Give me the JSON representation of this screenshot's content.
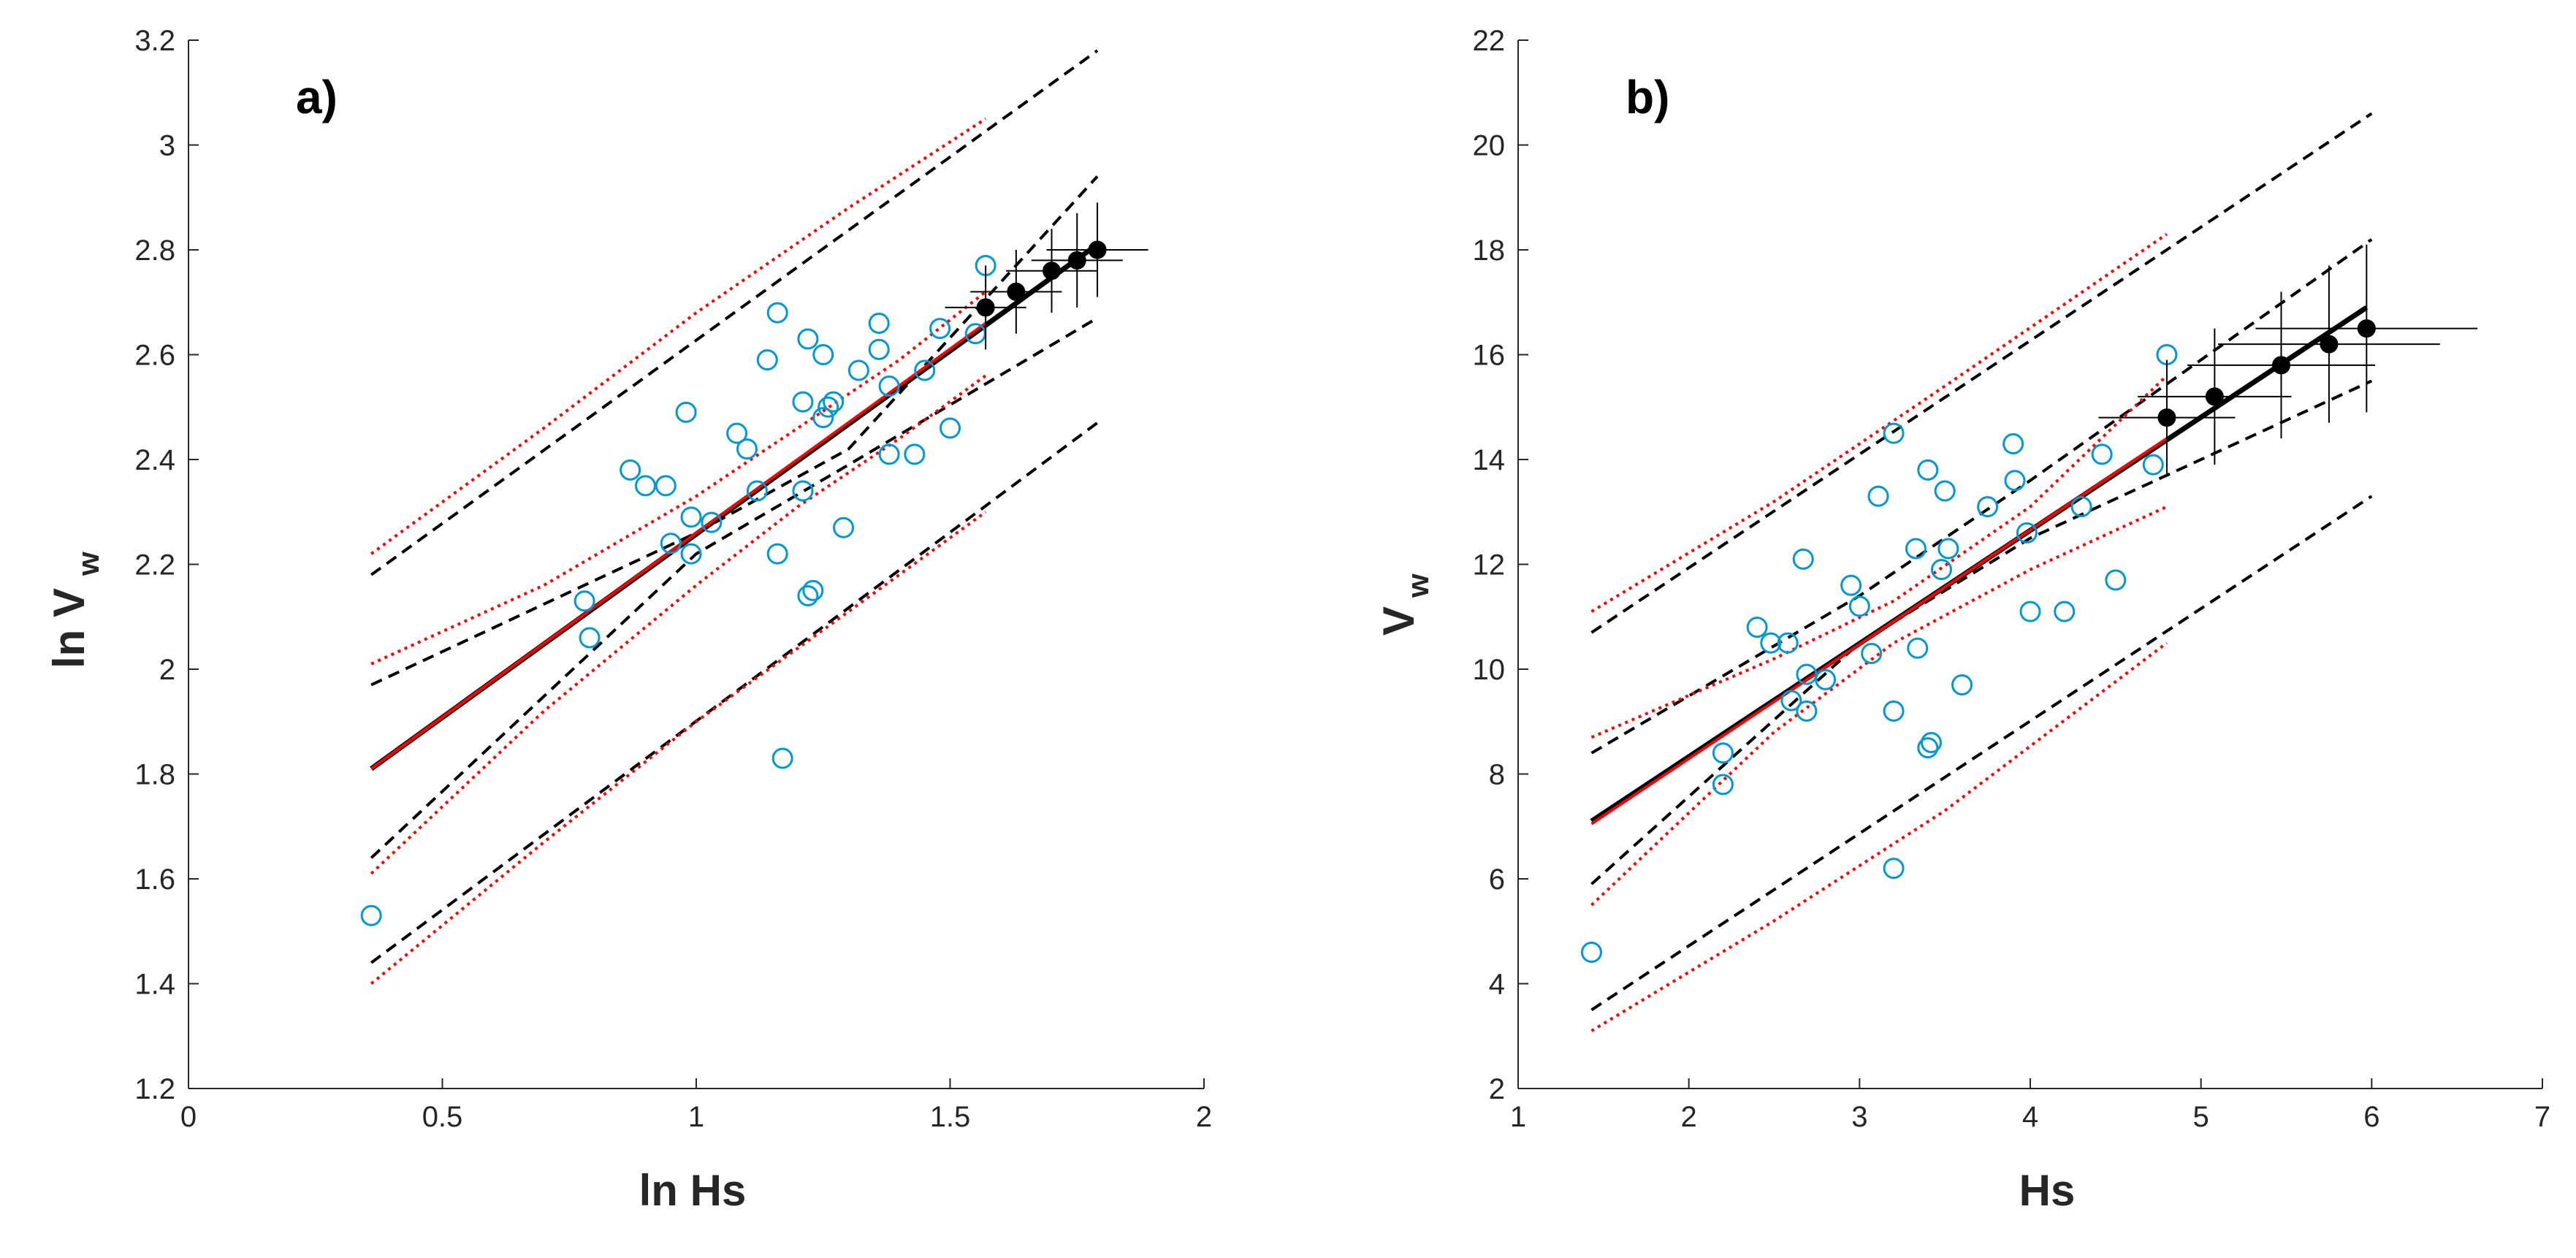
{
  "chart_data": [
    {
      "type": "scatter",
      "panel_label": "a)",
      "xlabel": "ln Hs",
      "ylabel_main": "ln V",
      "ylabel_sub": "w",
      "xlim": [
        0,
        2
      ],
      "ylim": [
        1.2,
        3.2
      ],
      "xticks": [
        0,
        0.5,
        1,
        1.5,
        2
      ],
      "xtick_labels": [
        "0",
        "0.5",
        "1",
        "1.5",
        "2"
      ],
      "yticks": [
        1.2,
        1.4,
        1.6,
        1.8,
        2,
        2.2,
        2.4,
        2.6,
        2.8,
        3,
        3.2
      ],
      "ytick_labels": [
        "1.2",
        "1.4",
        "1.6",
        "1.8",
        "2",
        "2.2",
        "2.4",
        "2.6",
        "2.8",
        "3",
        "3.2"
      ],
      "grid": false,
      "colors": {
        "open": "#0099d6",
        "filled": "#000000",
        "fit": "#000000",
        "red": "#ff0000",
        "dashed": "#000000"
      },
      "open_points": {
        "x": [
          0.36,
          0.78,
          0.79,
          0.87,
          0.9,
          0.94,
          0.95,
          0.98,
          0.99,
          0.99,
          1.03,
          1.08,
          1.1,
          1.12,
          1.14,
          1.16,
          1.16,
          1.17,
          1.21,
          1.21,
          1.22,
          1.22,
          1.23,
          1.25,
          1.25,
          1.26,
          1.27,
          1.29,
          1.32,
          1.36,
          1.36,
          1.38,
          1.38,
          1.43,
          1.45,
          1.48,
          1.5,
          1.55,
          1.57
        ],
        "y": [
          1.53,
          2.13,
          2.06,
          2.38,
          2.35,
          2.35,
          2.24,
          2.49,
          2.29,
          2.22,
          2.28,
          2.45,
          2.42,
          2.34,
          2.59,
          2.68,
          2.22,
          1.83,
          2.51,
          2.34,
          2.63,
          2.14,
          2.15,
          2.6,
          2.48,
          2.5,
          2.51,
          2.27,
          2.57,
          2.66,
          2.61,
          2.54,
          2.41,
          2.41,
          2.57,
          2.65,
          2.46,
          2.64,
          2.77
        ]
      },
      "filled_points": {
        "x": [
          1.57,
          1.63,
          1.7,
          1.75,
          1.79
        ],
        "y": [
          2.69,
          2.72,
          2.76,
          2.78,
          2.8
        ],
        "xerr": [
          0.08,
          0.09,
          0.09,
          0.09,
          0.1
        ],
        "yerr": [
          0.08,
          0.08,
          0.08,
          0.09,
          0.09
        ]
      },
      "fit_line": {
        "x": [
          0.36,
          1.79
        ],
        "y": [
          1.81,
          2.81
        ]
      },
      "red_fit_line": {
        "x": [
          0.36,
          1.57
        ],
        "y": [
          1.81,
          2.66
        ]
      },
      "dashed_prediction_upper": {
        "x": [
          0.36,
          1.79
        ],
        "y": [
          2.18,
          3.18
        ]
      },
      "dashed_prediction_lower": {
        "x": [
          0.36,
          1.79
        ],
        "y": [
          1.44,
          2.47
        ]
      },
      "dashed_conf_upper": {
        "x": [
          0.36,
          1.0,
          1.3,
          1.79
        ],
        "y": [
          1.97,
          2.26,
          2.42,
          2.94
        ]
      },
      "dashed_conf_lower": {
        "x": [
          0.36,
          1.0,
          1.3,
          1.79
        ],
        "y": [
          1.64,
          2.22,
          2.39,
          2.67
        ]
      },
      "red_prediction_upper": {
        "x": [
          0.36,
          0.7,
          1.0,
          1.3,
          1.57
        ],
        "y": [
          2.22,
          2.46,
          2.68,
          2.88,
          3.05
        ]
      },
      "red_prediction_lower": {
        "x": [
          0.36,
          0.7,
          1.0,
          1.3,
          1.57
        ],
        "y": [
          1.4,
          1.67,
          1.9,
          2.11,
          2.3
        ]
      },
      "red_conf_upper": {
        "x": [
          0.36,
          0.7,
          1.0,
          1.2,
          1.4,
          1.57
        ],
        "y": [
          2.01,
          2.16,
          2.33,
          2.46,
          2.59,
          2.72
        ]
      },
      "red_conf_lower": {
        "x": [
          0.36,
          0.7,
          1.0,
          1.2,
          1.4,
          1.57
        ],
        "y": [
          1.61,
          1.92,
          2.16,
          2.31,
          2.44,
          2.56
        ]
      }
    },
    {
      "type": "scatter",
      "panel_label": "b)",
      "xlabel": "Hs",
      "ylabel_main": "V",
      "ylabel_sub": "w",
      "xlim": [
        1,
        7
      ],
      "ylim": [
        2,
        22
      ],
      "xticks": [
        1,
        2,
        3,
        4,
        5,
        6,
        7
      ],
      "xtick_labels": [
        "1",
        "2",
        "3",
        "4",
        "5",
        "6",
        "7"
      ],
      "yticks": [
        2,
        4,
        6,
        8,
        10,
        12,
        14,
        16,
        18,
        20,
        22
      ],
      "ytick_labels": [
        "2",
        "4",
        "6",
        "8",
        "10",
        "12",
        "14",
        "16",
        "18",
        "20",
        "22"
      ],
      "grid": false,
      "colors": {
        "open": "#0099d6",
        "filled": "#000000",
        "fit": "#000000",
        "red": "#ff0000",
        "dashed": "#000000"
      },
      "open_points": {
        "x": [
          1.43,
          2.2,
          2.2,
          2.4,
          2.48,
          2.58,
          2.6,
          2.67,
          2.69,
          2.69,
          2.8,
          2.95,
          3.0,
          3.07,
          3.11,
          3.2,
          3.2,
          3.2,
          3.33,
          3.34,
          3.4,
          3.4,
          3.42,
          3.48,
          3.5,
          3.52,
          3.6,
          3.75,
          3.9,
          3.91,
          3.98,
          4.0,
          4.2,
          4.3,
          4.42,
          4.5,
          4.72,
          4.8
        ],
        "y": [
          4.6,
          8.4,
          7.8,
          10.8,
          10.5,
          10.5,
          9.4,
          12.1,
          9.9,
          9.2,
          9.8,
          11.6,
          11.2,
          10.3,
          13.3,
          14.5,
          9.2,
          6.2,
          12.3,
          10.4,
          13.8,
          8.5,
          8.6,
          11.9,
          13.4,
          12.3,
          9.7,
          13.1,
          14.3,
          13.6,
          12.6,
          11.1,
          11.1,
          13.1,
          14.1,
          11.7,
          13.9,
          16.0
        ]
      },
      "filled_points": {
        "x": [
          4.8,
          5.08,
          5.47,
          5.75,
          5.97
        ],
        "y": [
          14.8,
          15.2,
          15.8,
          16.2,
          16.5
        ],
        "xerr": [
          0.4,
          0.45,
          0.55,
          0.65,
          0.65
        ],
        "yerr": [
          1.1,
          1.3,
          1.4,
          1.5,
          1.6
        ]
      },
      "fit_line": {
        "x": [
          1.43,
          5.97
        ],
        "y": [
          7.1,
          16.9
        ]
      },
      "red_fit_line": {
        "x": [
          1.43,
          4.8
        ],
        "y": [
          7.05,
          14.4
        ]
      },
      "dashed_prediction_upper": {
        "x": [
          1.43,
          6.0
        ],
        "y": [
          10.7,
          20.6
        ]
      },
      "dashed_prediction_lower": {
        "x": [
          1.43,
          6.0
        ],
        "y": [
          3.5,
          13.3
        ]
      },
      "dashed_conf_upper": {
        "x": [
          1.43,
          3.0,
          4.0,
          6.0
        ],
        "y": [
          8.4,
          11.4,
          13.6,
          18.2
        ]
      },
      "dashed_conf_lower": {
        "x": [
          1.43,
          3.0,
          4.0,
          6.0
        ],
        "y": [
          5.9,
          10.5,
          12.5,
          15.5
        ]
      },
      "red_prediction_upper": {
        "x": [
          1.43,
          2.5,
          3.5,
          4.8
        ],
        "y": [
          11.1,
          13.2,
          15.4,
          18.3
        ]
      },
      "red_prediction_lower": {
        "x": [
          1.43,
          2.5,
          3.5,
          4.8
        ],
        "y": [
          3.1,
          5.2,
          7.3,
          10.5
        ]
      },
      "red_conf_upper": {
        "x": [
          1.43,
          2.5,
          3.2,
          4.0,
          4.8
        ],
        "y": [
          8.7,
          10.2,
          11.3,
          13.1,
          15.6
        ]
      },
      "red_conf_lower": {
        "x": [
          1.43,
          2.5,
          3.2,
          4.0,
          4.8
        ],
        "y": [
          5.5,
          8.8,
          10.5,
          11.9,
          13.1
        ]
      }
    }
  ]
}
